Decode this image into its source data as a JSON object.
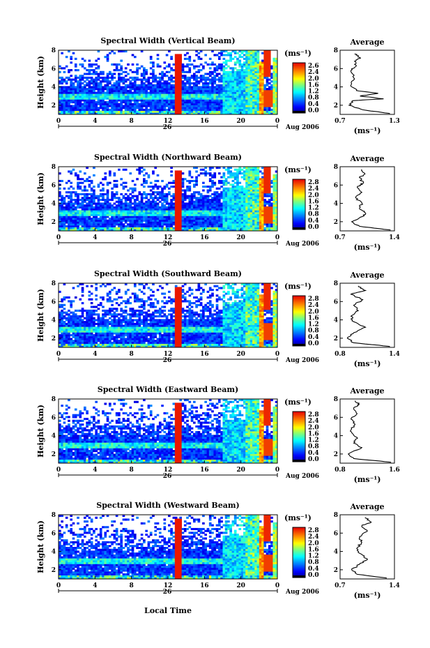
{
  "figure": {
    "xlabel": "Local Time",
    "x_ticks": [
      "0",
      "4",
      "8",
      "12",
      "16",
      "20",
      "0"
    ],
    "day_label": "26",
    "date_label": "Aug 2006",
    "ylabel": "Height (km)",
    "y_ticks": [
      "2",
      "4",
      "6",
      "8"
    ],
    "avg_title": "Average",
    "unit_label": "(ms⁻¹)"
  },
  "chart_data": [
    {
      "type": "heatmap",
      "title": "Spectral Width (Vertical Beam)",
      "xlim": [
        0,
        24
      ],
      "ylim": [
        1,
        8
      ],
      "colorbar_ticks": [
        "2.6",
        "2.4",
        "2.0",
        "1.6",
        "1.2",
        "0.8",
        "0.4",
        "0.0"
      ],
      "average": {
        "title": "Average",
        "xlim": [
          0.7,
          1.3
        ],
        "x_ticks": [
          "0.7",
          "1.3"
        ],
        "xlabel": "(ms⁻¹)",
        "ylim": [
          1,
          8
        ],
        "y_ticks": [
          "2",
          "4",
          "6",
          "8"
        ],
        "profile": [
          [
            1.25,
            1.1
          ],
          [
            0.95,
            1.5
          ],
          [
            0.8,
            2.0
          ],
          [
            0.84,
            2.5
          ],
          [
            1.18,
            2.7
          ],
          [
            0.92,
            3.0
          ],
          [
            1.12,
            3.3
          ],
          [
            0.88,
            3.6
          ],
          [
            0.82,
            4.2
          ],
          [
            0.85,
            5.0
          ],
          [
            0.82,
            5.8
          ],
          [
            0.88,
            6.3
          ],
          [
            0.86,
            6.8
          ],
          [
            0.92,
            7.2
          ],
          [
            0.86,
            7.6
          ]
        ]
      }
    },
    {
      "type": "heatmap",
      "title": "Spectral Width (Northward Beam)",
      "xlim": [
        0,
        24
      ],
      "ylim": [
        1,
        8
      ],
      "colorbar_ticks": [
        "2.8",
        "2.4",
        "2.0",
        "1.6",
        "1.2",
        "0.8",
        "0.4",
        "0.0"
      ],
      "average": {
        "title": "Average",
        "xlim": [
          0.7,
          1.4
        ],
        "x_ticks": [
          "0.7",
          "1.4"
        ],
        "xlabel": "(ms⁻¹)",
        "ylim": [
          1,
          8
        ],
        "y_ticks": [
          "2",
          "4",
          "6",
          "8"
        ],
        "profile": [
          [
            1.35,
            1.1
          ],
          [
            0.95,
            1.5
          ],
          [
            0.85,
            2.0
          ],
          [
            1.0,
            2.6
          ],
          [
            1.02,
            3.0
          ],
          [
            0.95,
            3.4
          ],
          [
            0.98,
            4.0
          ],
          [
            0.9,
            4.6
          ],
          [
            0.98,
            5.2
          ],
          [
            0.92,
            5.8
          ],
          [
            1.0,
            6.2
          ],
          [
            0.95,
            6.8
          ],
          [
            1.02,
            7.2
          ],
          [
            0.98,
            7.7
          ]
        ]
      }
    },
    {
      "type": "heatmap",
      "title": "Spectral Width (Southward Beam)",
      "xlim": [
        0,
        24
      ],
      "ylim": [
        1,
        8
      ],
      "colorbar_ticks": [
        "2.8",
        "2.4",
        "2.0",
        "1.6",
        "1.2",
        "0.8",
        "0.4",
        "0.0"
      ],
      "average": {
        "title": "Average",
        "xlim": [
          0.8,
          1.4
        ],
        "x_ticks": [
          "0.8",
          "1.4"
        ],
        "xlabel": "(ms⁻¹)",
        "ylim": [
          1,
          8
        ],
        "y_ticks": [
          "2",
          "4",
          "6",
          "8"
        ],
        "profile": [
          [
            1.35,
            1.1
          ],
          [
            0.95,
            1.5
          ],
          [
            0.88,
            2.0
          ],
          [
            0.95,
            2.6
          ],
          [
            1.08,
            3.2
          ],
          [
            0.95,
            3.8
          ],
          [
            0.92,
            4.4
          ],
          [
            1.0,
            5.0
          ],
          [
            0.95,
            5.6
          ],
          [
            1.05,
            6.2
          ],
          [
            0.92,
            6.8
          ],
          [
            1.08,
            7.2
          ],
          [
            1.0,
            7.7
          ]
        ]
      }
    },
    {
      "type": "heatmap",
      "title": "Spectral Width (Eastward Beam)",
      "xlim": [
        0,
        24
      ],
      "ylim": [
        1,
        8
      ],
      "colorbar_ticks": [
        "2.8",
        "2.4",
        "2.0",
        "1.6",
        "1.2",
        "0.8",
        "0.4",
        "0.0"
      ],
      "average": {
        "title": "Average",
        "xlim": [
          0.8,
          1.6
        ],
        "x_ticks": [
          "0.8",
          "1.6"
        ],
        "xlabel": "(ms⁻¹)",
        "ylim": [
          1,
          8
        ],
        "y_ticks": [
          "2",
          "4",
          "6",
          "8"
        ],
        "profile": [
          [
            1.55,
            1.1
          ],
          [
            1.0,
            1.5
          ],
          [
            0.92,
            2.0
          ],
          [
            1.12,
            2.7
          ],
          [
            1.0,
            3.2
          ],
          [
            1.05,
            3.8
          ],
          [
            0.95,
            4.5
          ],
          [
            1.02,
            5.2
          ],
          [
            0.96,
            5.8
          ],
          [
            1.05,
            6.4
          ],
          [
            1.0,
            7.0
          ],
          [
            1.08,
            7.4
          ],
          [
            1.02,
            7.8
          ]
        ]
      }
    },
    {
      "type": "heatmap",
      "title": "Spectral Width (Westward Beam)",
      "xlim": [
        0,
        24
      ],
      "ylim": [
        1,
        8
      ],
      "colorbar_ticks": [
        "2.8",
        "2.4",
        "2.0",
        "1.6",
        "1.2",
        "0.8",
        "0.4",
        "0.0"
      ],
      "average": {
        "title": "Average",
        "xlim": [
          0.7,
          1.4
        ],
        "x_ticks": [
          "0.7",
          "1.4"
        ],
        "xlabel": "(ms⁻¹)",
        "ylim": [
          1,
          8
        ],
        "y_ticks": [
          "2",
          "4",
          "6",
          "8"
        ],
        "profile": [
          [
            1.3,
            1.1
          ],
          [
            0.92,
            1.5
          ],
          [
            0.85,
            2.0
          ],
          [
            0.95,
            2.6
          ],
          [
            1.05,
            3.2
          ],
          [
            0.95,
            3.8
          ],
          [
            0.92,
            4.4
          ],
          [
            0.98,
            5.0
          ],
          [
            0.95,
            5.6
          ],
          [
            1.05,
            6.2
          ],
          [
            0.98,
            6.8
          ],
          [
            1.1,
            7.2
          ],
          [
            1.02,
            7.7
          ]
        ]
      }
    }
  ]
}
